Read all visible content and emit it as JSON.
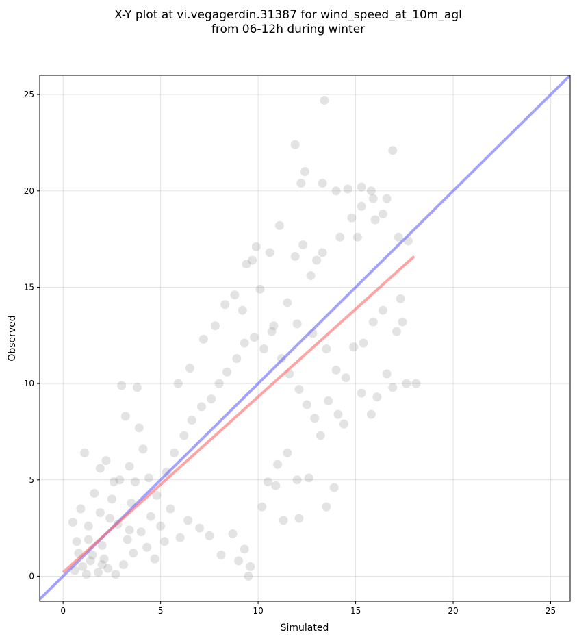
{
  "chart_data": {
    "type": "scatter",
    "title": "X-Y plot at vi.vegagerdin.31387 for wind_speed_at_10m_agl",
    "subtitle": "from 06-12h during winter",
    "xlabel": "Simulated",
    "ylabel": "Observed",
    "xlim": [
      -1.2,
      26.0
    ],
    "ylim": [
      -1.3,
      26.0
    ],
    "xticks": [
      0,
      5,
      10,
      15,
      20,
      25
    ],
    "yticks": [
      0,
      5,
      10,
      15,
      20,
      25
    ],
    "grid": true,
    "point_color": "#7f7f7f",
    "identity_line": {
      "color": "#6666ff",
      "x": [
        -1.2,
        26.0
      ],
      "y": [
        -1.2,
        26.0
      ]
    },
    "fit_line": {
      "color": "#ff6666",
      "x": [
        0.0,
        18.0
      ],
      "y": [
        0.2,
        16.6
      ]
    },
    "points": [
      [
        1.1,
        6.4
      ],
      [
        0.5,
        2.8
      ],
      [
        0.7,
        1.8
      ],
      [
        0.9,
        3.5
      ],
      [
        1.3,
        2.6
      ],
      [
        1.6,
        4.3
      ],
      [
        1.9,
        5.6
      ],
      [
        2.2,
        6.0
      ],
      [
        2.6,
        4.9
      ],
      [
        3.0,
        9.9
      ],
      [
        3.2,
        8.3
      ],
      [
        3.8,
        9.8
      ],
      [
        3.9,
        7.7
      ],
      [
        4.1,
        6.6
      ],
      [
        2.4,
        3.0
      ],
      [
        2.8,
        2.7
      ],
      [
        3.5,
        3.8
      ],
      [
        2.0,
        1.6
      ],
      [
        1.5,
        1.1
      ],
      [
        1.0,
        0.5
      ],
      [
        0.6,
        0.3
      ],
      [
        1.2,
        0.1
      ],
      [
        1.8,
        0.2
      ],
      [
        2.3,
        0.4
      ],
      [
        2.7,
        0.1
      ],
      [
        3.1,
        0.6
      ],
      [
        3.6,
        1.2
      ],
      [
        4.3,
        1.5
      ],
      [
        4.7,
        0.9
      ],
      [
        5.2,
        1.8
      ],
      [
        1.4,
        0.8
      ],
      [
        2.1,
        0.9
      ],
      [
        3.3,
        1.9
      ],
      [
        4.0,
        2.3
      ],
      [
        4.5,
        3.1
      ],
      [
        5.0,
        2.6
      ],
      [
        5.5,
        3.5
      ],
      [
        6.0,
        2.0
      ],
      [
        6.4,
        2.9
      ],
      [
        7.0,
        2.5
      ],
      [
        7.5,
        2.1
      ],
      [
        8.1,
        1.1
      ],
      [
        8.7,
        2.2
      ],
      [
        9.0,
        0.8
      ],
      [
        9.3,
        1.4
      ],
      [
        9.6,
        0.5
      ],
      [
        9.5,
        0.0
      ],
      [
        10.2,
        3.6
      ],
      [
        11.3,
        2.9
      ],
      [
        12.1,
        3.0
      ],
      [
        13.5,
        3.6
      ],
      [
        13.9,
        4.6
      ],
      [
        15.8,
        8.4
      ],
      [
        16.1,
        9.3
      ],
      [
        16.9,
        9.8
      ],
      [
        17.6,
        10.0
      ],
      [
        18.1,
        10.0
      ],
      [
        16.6,
        10.5
      ],
      [
        15.3,
        9.5
      ],
      [
        14.5,
        10.3
      ],
      [
        14.0,
        10.7
      ],
      [
        13.5,
        11.8
      ],
      [
        12.8,
        12.6
      ],
      [
        12.0,
        13.1
      ],
      [
        11.5,
        14.2
      ],
      [
        10.8,
        13.0
      ],
      [
        10.1,
        14.9
      ],
      [
        9.7,
        16.4
      ],
      [
        9.4,
        16.2
      ],
      [
        9.9,
        17.1
      ],
      [
        10.6,
        16.8
      ],
      [
        11.1,
        18.2
      ],
      [
        11.9,
        16.6
      ],
      [
        12.3,
        17.2
      ],
      [
        12.7,
        15.6
      ],
      [
        13.0,
        16.4
      ],
      [
        13.3,
        16.8
      ],
      [
        12.4,
        21.0
      ],
      [
        12.2,
        20.4
      ],
      [
        11.9,
        22.4
      ],
      [
        13.4,
        24.7
      ],
      [
        13.3,
        20.4
      ],
      [
        14.0,
        20.0
      ],
      [
        14.6,
        20.1
      ],
      [
        15.3,
        20.2
      ],
      [
        15.8,
        20.0
      ],
      [
        15.9,
        19.6
      ],
      [
        16.6,
        19.6
      ],
      [
        16.9,
        22.1
      ],
      [
        15.3,
        19.2
      ],
      [
        14.8,
        18.6
      ],
      [
        14.2,
        17.6
      ],
      [
        15.1,
        17.6
      ],
      [
        16.0,
        18.5
      ],
      [
        16.4,
        18.8
      ],
      [
        17.2,
        17.6
      ],
      [
        17.7,
        17.4
      ],
      [
        17.3,
        14.4
      ],
      [
        17.4,
        13.2
      ],
      [
        17.1,
        12.7
      ],
      [
        16.4,
        13.8
      ],
      [
        15.9,
        13.2
      ],
      [
        15.4,
        12.1
      ],
      [
        14.9,
        11.9
      ],
      [
        12.6,
        5.1
      ],
      [
        12.0,
        5.0
      ],
      [
        11.5,
        6.4
      ],
      [
        11.0,
        5.8
      ],
      [
        10.5,
        4.9
      ],
      [
        10.9,
        4.7
      ],
      [
        4.8,
        4.2
      ],
      [
        5.3,
        5.4
      ],
      [
        5.7,
        6.4
      ],
      [
        6.2,
        7.3
      ],
      [
        6.6,
        8.1
      ],
      [
        7.1,
        8.8
      ],
      [
        7.6,
        9.2
      ],
      [
        8.0,
        10.0
      ],
      [
        8.4,
        10.6
      ],
      [
        8.9,
        11.3
      ],
      [
        9.3,
        12.1
      ],
      [
        9.8,
        12.4
      ],
      [
        10.3,
        11.8
      ],
      [
        10.7,
        12.7
      ],
      [
        11.2,
        11.3
      ],
      [
        11.6,
        10.5
      ],
      [
        12.1,
        9.7
      ],
      [
        12.5,
        8.9
      ],
      [
        12.9,
        8.2
      ],
      [
        13.2,
        7.3
      ],
      [
        13.6,
        9.1
      ],
      [
        14.1,
        8.4
      ],
      [
        14.4,
        7.9
      ],
      [
        5.9,
        10.0
      ],
      [
        6.5,
        10.8
      ],
      [
        7.2,
        12.3
      ],
      [
        7.8,
        13.0
      ],
      [
        8.3,
        14.1
      ],
      [
        8.8,
        14.6
      ],
      [
        9.2,
        13.8
      ],
      [
        4.4,
        5.1
      ],
      [
        3.7,
        4.9
      ],
      [
        3.4,
        5.7
      ],
      [
        2.9,
        5.0
      ],
      [
        2.5,
        4.0
      ],
      [
        1.9,
        3.3
      ],
      [
        1.3,
        1.9
      ],
      [
        0.8,
        1.2
      ],
      [
        2.0,
        0.6
      ],
      [
        3.4,
        2.4
      ]
    ]
  }
}
